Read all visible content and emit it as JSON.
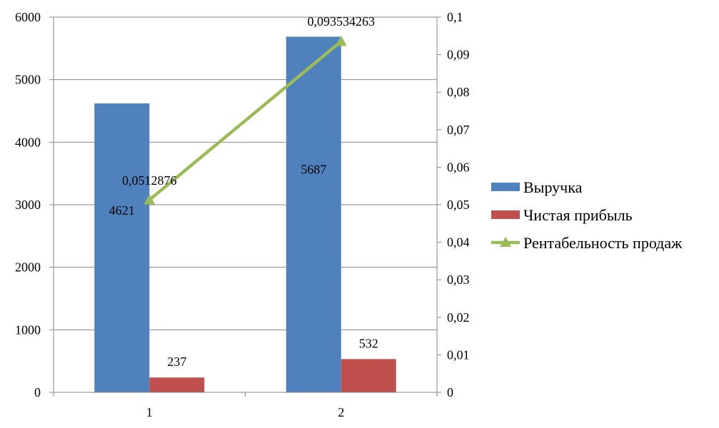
{
  "chart_data": {
    "type": "bar",
    "categories": [
      "1",
      "2"
    ],
    "series": [
      {
        "name": "Выручка",
        "kind": "bar",
        "axis": "left",
        "color": "#4f81bd",
        "values": [
          4621,
          5687
        ],
        "labels": [
          "4621",
          "5687"
        ]
      },
      {
        "name": "Чистая прибыль",
        "kind": "bar",
        "axis": "left",
        "color": "#c0504d",
        "values": [
          237,
          532
        ],
        "labels": [
          "237",
          "532"
        ]
      },
      {
        "name": "Рентабельность продаж",
        "kind": "line",
        "marker": "triangle",
        "axis": "right",
        "color": "#9bbb59",
        "values": [
          0.0512876,
          0.093534263
        ],
        "labels": [
          "0,0512876",
          "0,093534263"
        ]
      }
    ],
    "y_left": {
      "lim": [
        0,
        6000
      ],
      "ticks": [
        "0",
        "1000",
        "2000",
        "3000",
        "4000",
        "5000",
        "6000"
      ]
    },
    "y_right": {
      "lim": [
        0,
        0.1
      ],
      "ticks": [
        "0",
        "0,01",
        "0,02",
        "0,03",
        "0,04",
        "0,05",
        "0,06",
        "0,07",
        "0,08",
        "0,09",
        "0,1"
      ]
    },
    "grid": true,
    "legend": "right"
  }
}
